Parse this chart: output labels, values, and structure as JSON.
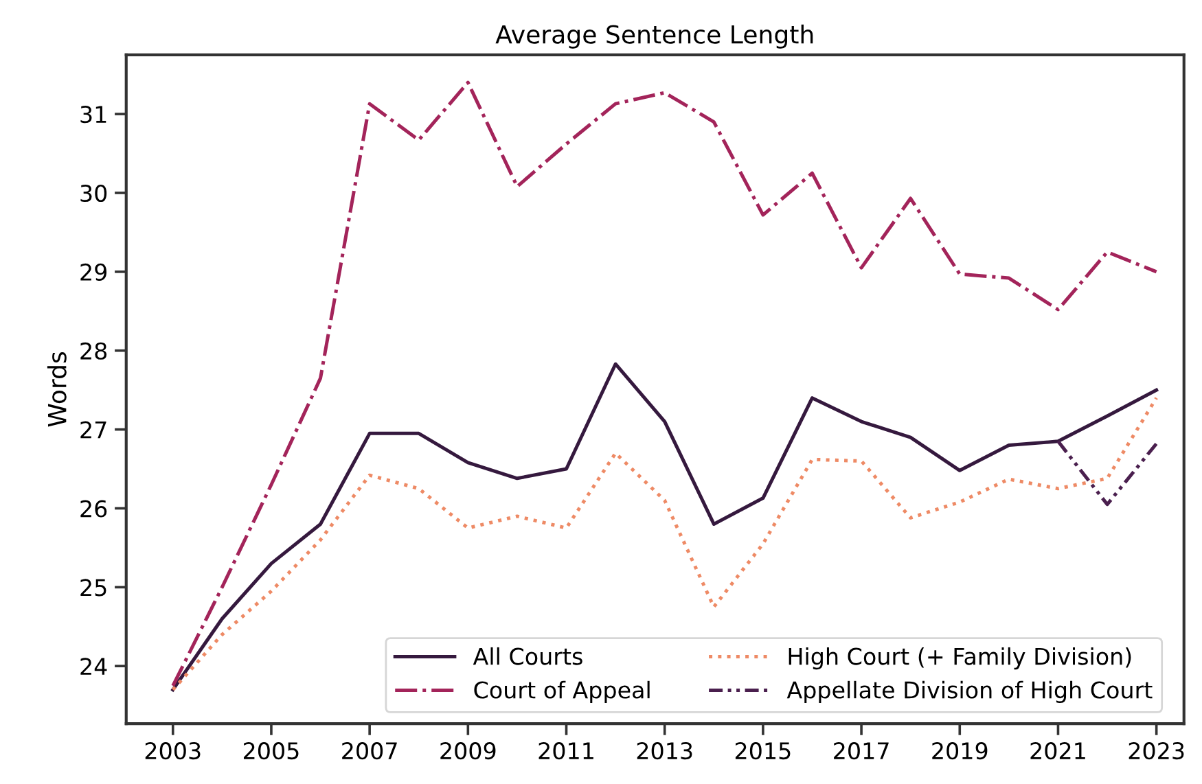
{
  "chart_data": {
    "type": "line",
    "title": "Average Sentence Length",
    "ylabel": "Words",
    "x": [
      2003,
      2004,
      2005,
      2006,
      2007,
      2008,
      2009,
      2010,
      2011,
      2012,
      2013,
      2014,
      2015,
      2016,
      2017,
      2018,
      2019,
      2020,
      2021,
      2022,
      2023
    ],
    "series": [
      {
        "name": "All Courts",
        "color": "#35193e",
        "line_style": "solid",
        "values": [
          23.7,
          24.6,
          25.3,
          25.8,
          26.95,
          26.95,
          26.58,
          26.38,
          26.5,
          27.83,
          27.1,
          25.8,
          26.13,
          27.4,
          27.1,
          26.9,
          26.48,
          26.8,
          26.85,
          27.17,
          27.5
        ]
      },
      {
        "name": "Court of Appeal",
        "color": "#a3245a",
        "line_style": "dashdot",
        "values": [
          23.75,
          25.0,
          26.3,
          27.65,
          31.13,
          30.67,
          31.4,
          30.08,
          30.62,
          31.13,
          31.27,
          30.9,
          29.72,
          30.25,
          29.05,
          29.93,
          28.97,
          28.92,
          28.52,
          29.25,
          29.0
        ]
      },
      {
        "name": "High Court (+ Family Division)",
        "color": "#ee8a65",
        "line_style": "dotted",
        "values": [
          23.7,
          24.4,
          24.95,
          25.6,
          26.42,
          26.25,
          25.75,
          25.9,
          25.75,
          26.7,
          26.1,
          24.75,
          25.55,
          26.62,
          26.6,
          25.88,
          26.08,
          26.37,
          26.25,
          26.38,
          27.4
        ]
      },
      {
        "name": "Appellate Division of High Court",
        "color": "#4a1f4e",
        "line_style": "dashdotdot",
        "values": [
          null,
          null,
          null,
          null,
          null,
          null,
          null,
          null,
          null,
          null,
          null,
          null,
          null,
          null,
          null,
          null,
          null,
          null,
          26.85,
          26.05,
          26.82
        ]
      }
    ],
    "xlim": [
      2002.05,
      2023.56
    ],
    "ylim": [
      23.27,
      31.75
    ],
    "xticks": [
      2003,
      2005,
      2007,
      2009,
      2011,
      2013,
      2015,
      2017,
      2019,
      2021,
      2023
    ],
    "yticks": [
      24,
      25,
      26,
      27,
      28,
      29,
      30,
      31
    ],
    "grid": false,
    "legend": "bottom right",
    "marker": "none"
  }
}
